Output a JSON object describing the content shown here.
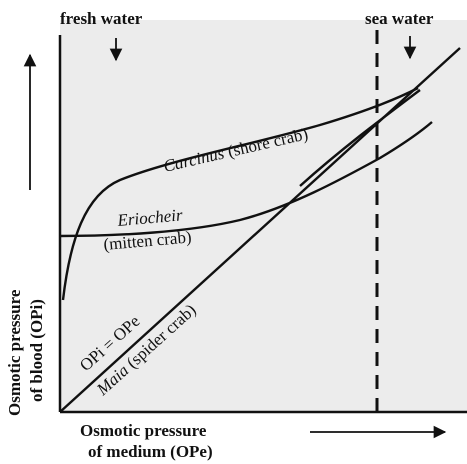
{
  "top_labels": {
    "fresh_water": "fresh water",
    "sea_water": "sea water"
  },
  "curves": {
    "carcinus": {
      "name": "Carcinus",
      "common": "(shore crab)"
    },
    "eriocheir": {
      "name": "Eriocheir",
      "common": "(mitten crab)"
    },
    "equal": {
      "label": "OPi = OPe"
    },
    "maia": {
      "name": "Maia",
      "common": "(spider crab)"
    }
  },
  "y_axis": {
    "line1": "Osmotic pressure",
    "line2": "of blood (OPi)"
  },
  "x_axis": {
    "line1": "Osmotic pressure",
    "line2": "of medium (OPe)"
  }
}
